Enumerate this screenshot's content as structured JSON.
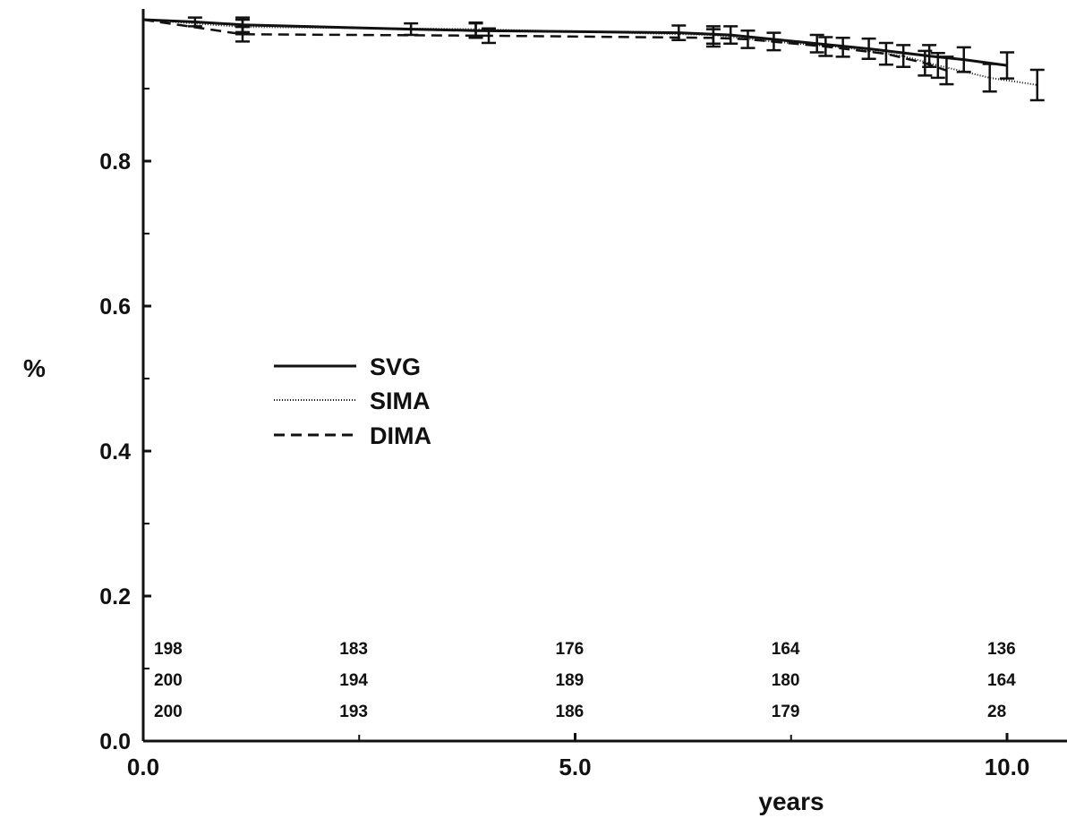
{
  "chart_data": {
    "type": "line",
    "title": "",
    "xlabel": "years",
    "ylabel": "%",
    "xlim": [
      0,
      10.5
    ],
    "ylim": [
      0,
      1.0
    ],
    "x_ticks": [
      {
        "value": 0,
        "label": "0.0"
      },
      {
        "value": 5,
        "label": "5.0"
      },
      {
        "value": 10,
        "label": "10.0"
      }
    ],
    "x_minor_ticks": [
      2.5,
      7.5
    ],
    "y_ticks": [
      {
        "value": 0,
        "label": "0.0"
      },
      {
        "value": 0.2,
        "label": "0.2"
      },
      {
        "value": 0.4,
        "label": "0.4"
      },
      {
        "value": 0.6,
        "label": "0.6"
      },
      {
        "value": 0.8,
        "label": "0.8"
      }
    ],
    "y_minor_ticks": [
      0.1,
      0.3,
      0.5,
      0.7,
      0.9
    ],
    "grid": false,
    "legend_position": "center-left",
    "series": [
      {
        "name": "SVG",
        "style": "solid",
        "points": [
          {
            "x": 0.0,
            "y": 0.995,
            "err": 0.0
          },
          {
            "x": 0.6,
            "y": 0.992,
            "err": 0.006
          },
          {
            "x": 1.15,
            "y": 0.988,
            "err": 0.01
          },
          {
            "x": 3.1,
            "y": 0.982,
            "err": 0.008
          },
          {
            "x": 3.85,
            "y": 0.98,
            "err": 0.01
          },
          {
            "x": 6.2,
            "y": 0.977,
            "err": 0.01
          },
          {
            "x": 6.8,
            "y": 0.974,
            "err": 0.012
          },
          {
            "x": 7.8,
            "y": 0.962,
            "err": 0.012
          },
          {
            "x": 8.4,
            "y": 0.955,
            "err": 0.014
          },
          {
            "x": 9.1,
            "y": 0.945,
            "err": 0.015
          },
          {
            "x": 9.5,
            "y": 0.94,
            "err": 0.017
          },
          {
            "x": 10.0,
            "y": 0.932,
            "err": 0.018
          }
        ]
      },
      {
        "name": "SIMA",
        "style": "dotted",
        "points": [
          {
            "x": 0.0,
            "y": 0.995,
            "err": 0.0
          },
          {
            "x": 1.15,
            "y": 0.985,
            "err": 0.01
          },
          {
            "x": 3.85,
            "y": 0.982,
            "err": 0.009
          },
          {
            "x": 6.6,
            "y": 0.974,
            "err": 0.012
          },
          {
            "x": 7.3,
            "y": 0.965,
            "err": 0.012
          },
          {
            "x": 8.1,
            "y": 0.957,
            "err": 0.013
          },
          {
            "x": 8.8,
            "y": 0.945,
            "err": 0.015
          },
          {
            "x": 9.2,
            "y": 0.932,
            "err": 0.017
          },
          {
            "x": 9.8,
            "y": 0.915,
            "err": 0.019
          },
          {
            "x": 10.35,
            "y": 0.905,
            "err": 0.021
          }
        ]
      },
      {
        "name": "DIMA",
        "style": "dashed",
        "points": [
          {
            "x": 0.0,
            "y": 0.995,
            "err": 0.0
          },
          {
            "x": 1.15,
            "y": 0.975,
            "err": 0.01
          },
          {
            "x": 4.0,
            "y": 0.973,
            "err": 0.01
          },
          {
            "x": 6.6,
            "y": 0.97,
            "err": 0.012
          },
          {
            "x": 7.0,
            "y": 0.968,
            "err": 0.012
          },
          {
            "x": 7.9,
            "y": 0.958,
            "err": 0.013
          },
          {
            "x": 8.6,
            "y": 0.948,
            "err": 0.015
          },
          {
            "x": 9.05,
            "y": 0.935,
            "err": 0.017
          },
          {
            "x": 9.3,
            "y": 0.925,
            "err": 0.019
          }
        ]
      }
    ],
    "at_risk": {
      "x": [
        0.0,
        2.5,
        5.0,
        7.5,
        10.0
      ],
      "rows": [
        [
          "198",
          "183",
          "176",
          "164",
          "136"
        ],
        [
          "200",
          "194",
          "189",
          "180",
          "164"
        ],
        [
          "200",
          "193",
          "186",
          "179",
          "28"
        ]
      ]
    }
  }
}
